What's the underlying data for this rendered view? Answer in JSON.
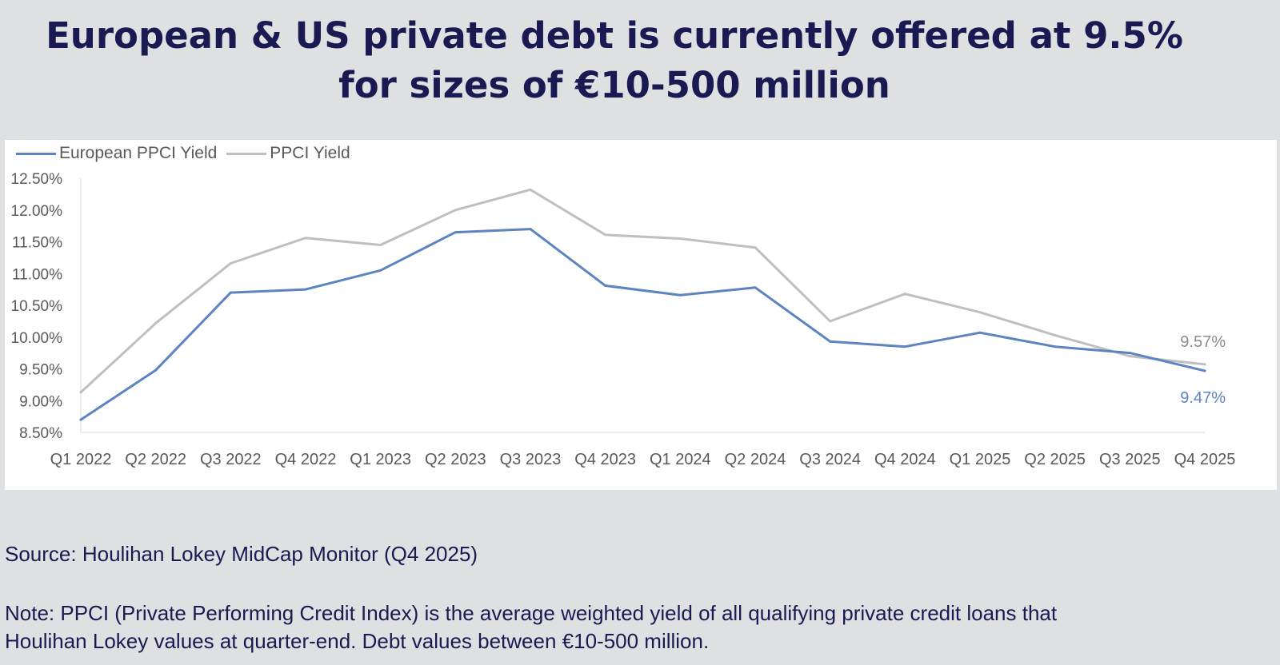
{
  "title": {
    "line1": "European & US private debt is currently offered at 9.5%",
    "line2": "for sizes of €10-500 million"
  },
  "legend": {
    "european_label": "European PPCI Yield",
    "ppci_label": "PPCI Yield"
  },
  "chart_data": {
    "type": "line",
    "categories": [
      "Q1 2022",
      "Q2 2022",
      "Q3 2022",
      "Q4 2022",
      "Q1 2023",
      "Q2 2023",
      "Q3 2023",
      "Q4 2023",
      "Q1 2024",
      "Q2 2024",
      "Q3 2024",
      "Q4 2024",
      "Q1 2025",
      "Q2 2025",
      "Q3 2025",
      "Q4 2025"
    ],
    "series": [
      {
        "name": "European PPCI Yield",
        "color": "#5b84c1",
        "values": [
          8.7,
          9.48,
          10.7,
          10.75,
          11.05,
          11.65,
          11.7,
          10.81,
          10.66,
          10.78,
          9.93,
          9.85,
          10.07,
          9.85,
          9.75,
          9.47
        ]
      },
      {
        "name": "PPCI Yield",
        "color": "#bfbfbf",
        "values": [
          9.13,
          10.22,
          11.16,
          11.56,
          11.45,
          12.0,
          12.32,
          11.61,
          11.55,
          11.41,
          10.25,
          10.68,
          10.39,
          10.03,
          9.7,
          9.57
        ]
      }
    ],
    "yticks": [
      "12.50%",
      "12.00%",
      "11.50%",
      "11.00%",
      "10.50%",
      "10.00%",
      "9.50%",
      "9.00%",
      "8.50%"
    ],
    "ylim": [
      8.5,
      12.5
    ],
    "grid": false,
    "legend_position": "top-left",
    "end_labels": {
      "ppci": "9.57%",
      "european": "9.47%"
    }
  },
  "footer": {
    "source": "Source: Houlihan Lokey MidCap Monitor (Q4 2025)",
    "note_line1": "Note: PPCI (Private Performing Credit Index) is the average weighted yield of all qualifying private credit loans that",
    "note_line2": "Houlihan Lokey values at quarter-end. Debt values between €10-500 million."
  }
}
